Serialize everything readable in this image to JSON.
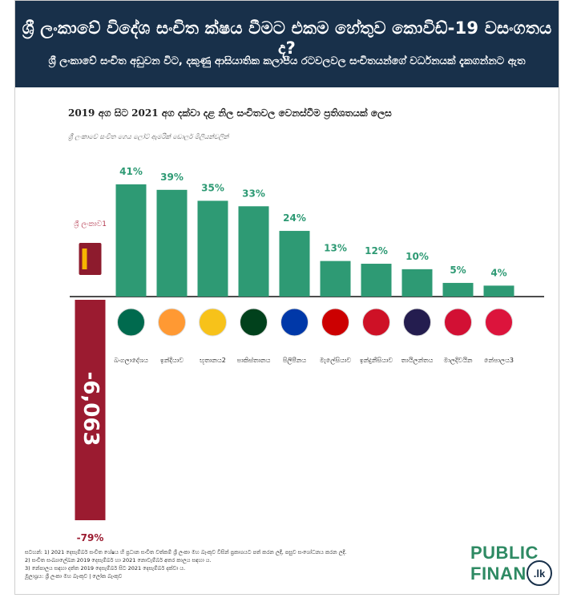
{
  "header": {
    "title": "ශ්‍රී ලංකාවේ විදේශ සංචිත ක්ෂය වීමට එකම හේතුව කොවිඩ්-19 වසංගතය ද?",
    "subtitle": "ශ්‍රී ලංකාවේ සංචිත අඩුවන විට, දකුණු ආසියාතික කලාපීය රටවලවල සංචිතයන්ගේ වර්ධනයක් දැකගන්නට ඇත"
  },
  "chart_data": {
    "type": "bar",
    "title": "2019 අග සිට 2021 අග දක්වා දළ නිල සංචිතවල වෙනස්වීම ප්‍රතිශතයක් ලෙස",
    "subtitle": "ශ්‍රී ලංකාවේ සංචිත ගෙය ලෝට් ඇමරික් ඩොලර් මිලියන්වලින්",
    "categories": [
      "ශ්‍රී ලංකාව",
      "බංගලාදේශය",
      "ඉන්දියාව",
      "භූතානය",
      "පාකිස්තානය",
      "පිලිපීනය",
      "මැලේසියාව",
      "ඉන්දුනීසියාව",
      "තායිලන්තය",
      "මාලදිවයින",
      "නේපාලය"
    ],
    "category_markers": [
      "1",
      "",
      "",
      "2",
      "",
      "",
      "",
      "",
      "",
      "",
      "3"
    ],
    "values": [
      -79,
      41,
      39,
      35,
      33,
      24,
      13,
      12,
      10,
      5,
      4
    ],
    "value_labels": [
      "-79%",
      "41%",
      "39%",
      "35%",
      "33%",
      "24%",
      "13%",
      "12%",
      "10%",
      "5%",
      "4%"
    ],
    "highlight_annotation": "-6,063",
    "colors": {
      "positive": "#2e9a74",
      "negative": "#9b1b30",
      "label_positive": "#2e9a74",
      "label_negative": "#9b1b30",
      "sri_lanka_label": "#b3374d"
    },
    "flag_icons": [
      "sri-lanka-flag-icon",
      "bangladesh-flag-icon",
      "india-flag-icon",
      "bhutan-flag-icon",
      "pakistan-flag-icon",
      "philippines-flag-icon",
      "malaysia-flag-icon",
      "indonesia-flag-icon",
      "thailand-flag-icon",
      "maldives-flag-icon",
      "nepal-flag-icon"
    ],
    "ylim": [
      -79,
      41
    ],
    "grid": false,
    "legend": "none"
  },
  "footer": {
    "notes": [
      "සටහන්: 1) 2021 දෙසැම්බර් සංචිත ශේෂය හි ප්‍රධාන සංචිත වත්කම් ශ්‍රී ලංකා මහ බැංකුව විසින් ප්‍රකාශයට පත් කරන ලදී, පසුව සංශෝධනය කරන ලදී.",
      "2) සංචිත සංඛ්‍යාලේඛන 2019 දෙසැම්බර් හා 2021 නොවැම්බර් අතර කාලය සඳහා ය.",
      "3) නේපාලය සඳහා දත්ත 2019 දෙසැම්බර් සිට 2021 දෙසැම්බර් දක්වා ය.",
      "මූලාශ්‍රය: ශ්‍රී ලංකා මහ බැංකුව | ලෝක බැංකුව"
    ]
  },
  "logo": {
    "line1": "PUBLIC",
    "line2": "FINANCE",
    "badge": ".lk"
  }
}
